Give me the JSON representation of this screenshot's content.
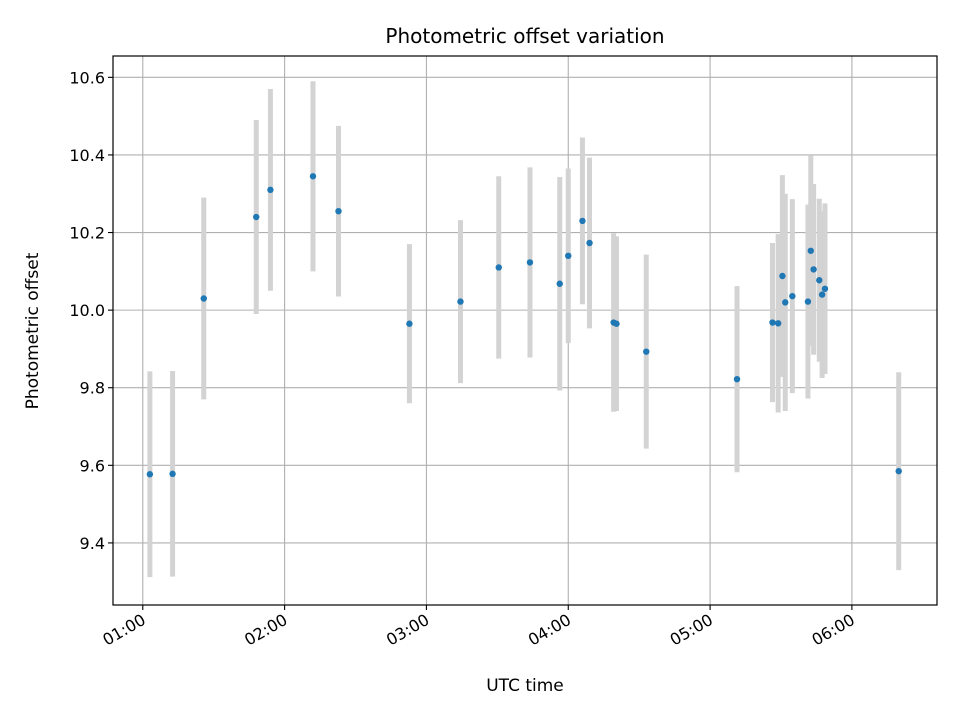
{
  "chart_data": {
    "type": "scatter",
    "title": "Photometric offset variation",
    "xlabel": "UTC time",
    "ylabel": "Photometric offset",
    "x_unit": "hours UTC",
    "xlim": [
      0.79,
      6.6
    ],
    "ylim": [
      9.24,
      10.655
    ],
    "x_ticks": [
      1,
      2,
      3,
      4,
      5,
      6
    ],
    "x_tick_labels": [
      "01:00",
      "02:00",
      "03:00",
      "04:00",
      "05:00",
      "06:00"
    ],
    "y_ticks": [
      9.4,
      9.6,
      9.8,
      10.0,
      10.2,
      10.4,
      10.6
    ],
    "y_tick_labels": [
      "9.4",
      "9.6",
      "9.8",
      "10.0",
      "10.2",
      "10.4",
      "10.6"
    ],
    "grid": true,
    "point_color": "#1f77b4",
    "errorbar_color": "#d3d3d3",
    "points": [
      {
        "x": 1.05,
        "y": 9.577,
        "yerr": 0.265
      },
      {
        "x": 1.21,
        "y": 9.578,
        "yerr": 0.265
      },
      {
        "x": 1.43,
        "y": 10.03,
        "yerr": 0.26
      },
      {
        "x": 1.8,
        "y": 10.24,
        "yerr": 0.25
      },
      {
        "x": 1.9,
        "y": 10.31,
        "yerr": 0.26
      },
      {
        "x": 2.2,
        "y": 10.345,
        "yerr": 0.245
      },
      {
        "x": 2.38,
        "y": 10.255,
        "yerr": 0.22
      },
      {
        "x": 2.88,
        "y": 9.965,
        "yerr": 0.205
      },
      {
        "x": 3.24,
        "y": 10.022,
        "yerr": 0.21
      },
      {
        "x": 3.51,
        "y": 10.11,
        "yerr": 0.235
      },
      {
        "x": 3.73,
        "y": 10.123,
        "yerr": 0.245
      },
      {
        "x": 3.94,
        "y": 10.068,
        "yerr": 0.275
      },
      {
        "x": 4.0,
        "y": 10.14,
        "yerr": 0.225
      },
      {
        "x": 4.1,
        "y": 10.23,
        "yerr": 0.215
      },
      {
        "x": 4.15,
        "y": 10.173,
        "yerr": 0.22
      },
      {
        "x": 4.32,
        "y": 9.968,
        "yerr": 0.23
      },
      {
        "x": 4.34,
        "y": 9.965,
        "yerr": 0.225
      },
      {
        "x": 4.55,
        "y": 9.893,
        "yerr": 0.25
      },
      {
        "x": 5.19,
        "y": 9.822,
        "yerr": 0.24
      },
      {
        "x": 5.44,
        "y": 9.968,
        "yerr": 0.205
      },
      {
        "x": 5.48,
        "y": 9.966,
        "yerr": 0.23
      },
      {
        "x": 5.51,
        "y": 10.088,
        "yerr": 0.26
      },
      {
        "x": 5.53,
        "y": 10.02,
        "yerr": 0.28
      },
      {
        "x": 5.58,
        "y": 10.036,
        "yerr": 0.25
      },
      {
        "x": 5.69,
        "y": 10.022,
        "yerr": 0.25
      },
      {
        "x": 5.71,
        "y": 10.153,
        "yerr": 0.245
      },
      {
        "x": 5.73,
        "y": 10.105,
        "yerr": 0.22
      },
      {
        "x": 5.77,
        "y": 10.077,
        "yerr": 0.21
      },
      {
        "x": 5.79,
        "y": 10.04,
        "yerr": 0.215
      },
      {
        "x": 5.81,
        "y": 10.055,
        "yerr": 0.22
      },
      {
        "x": 6.33,
        "y": 9.585,
        "yerr": 0.255
      }
    ]
  }
}
